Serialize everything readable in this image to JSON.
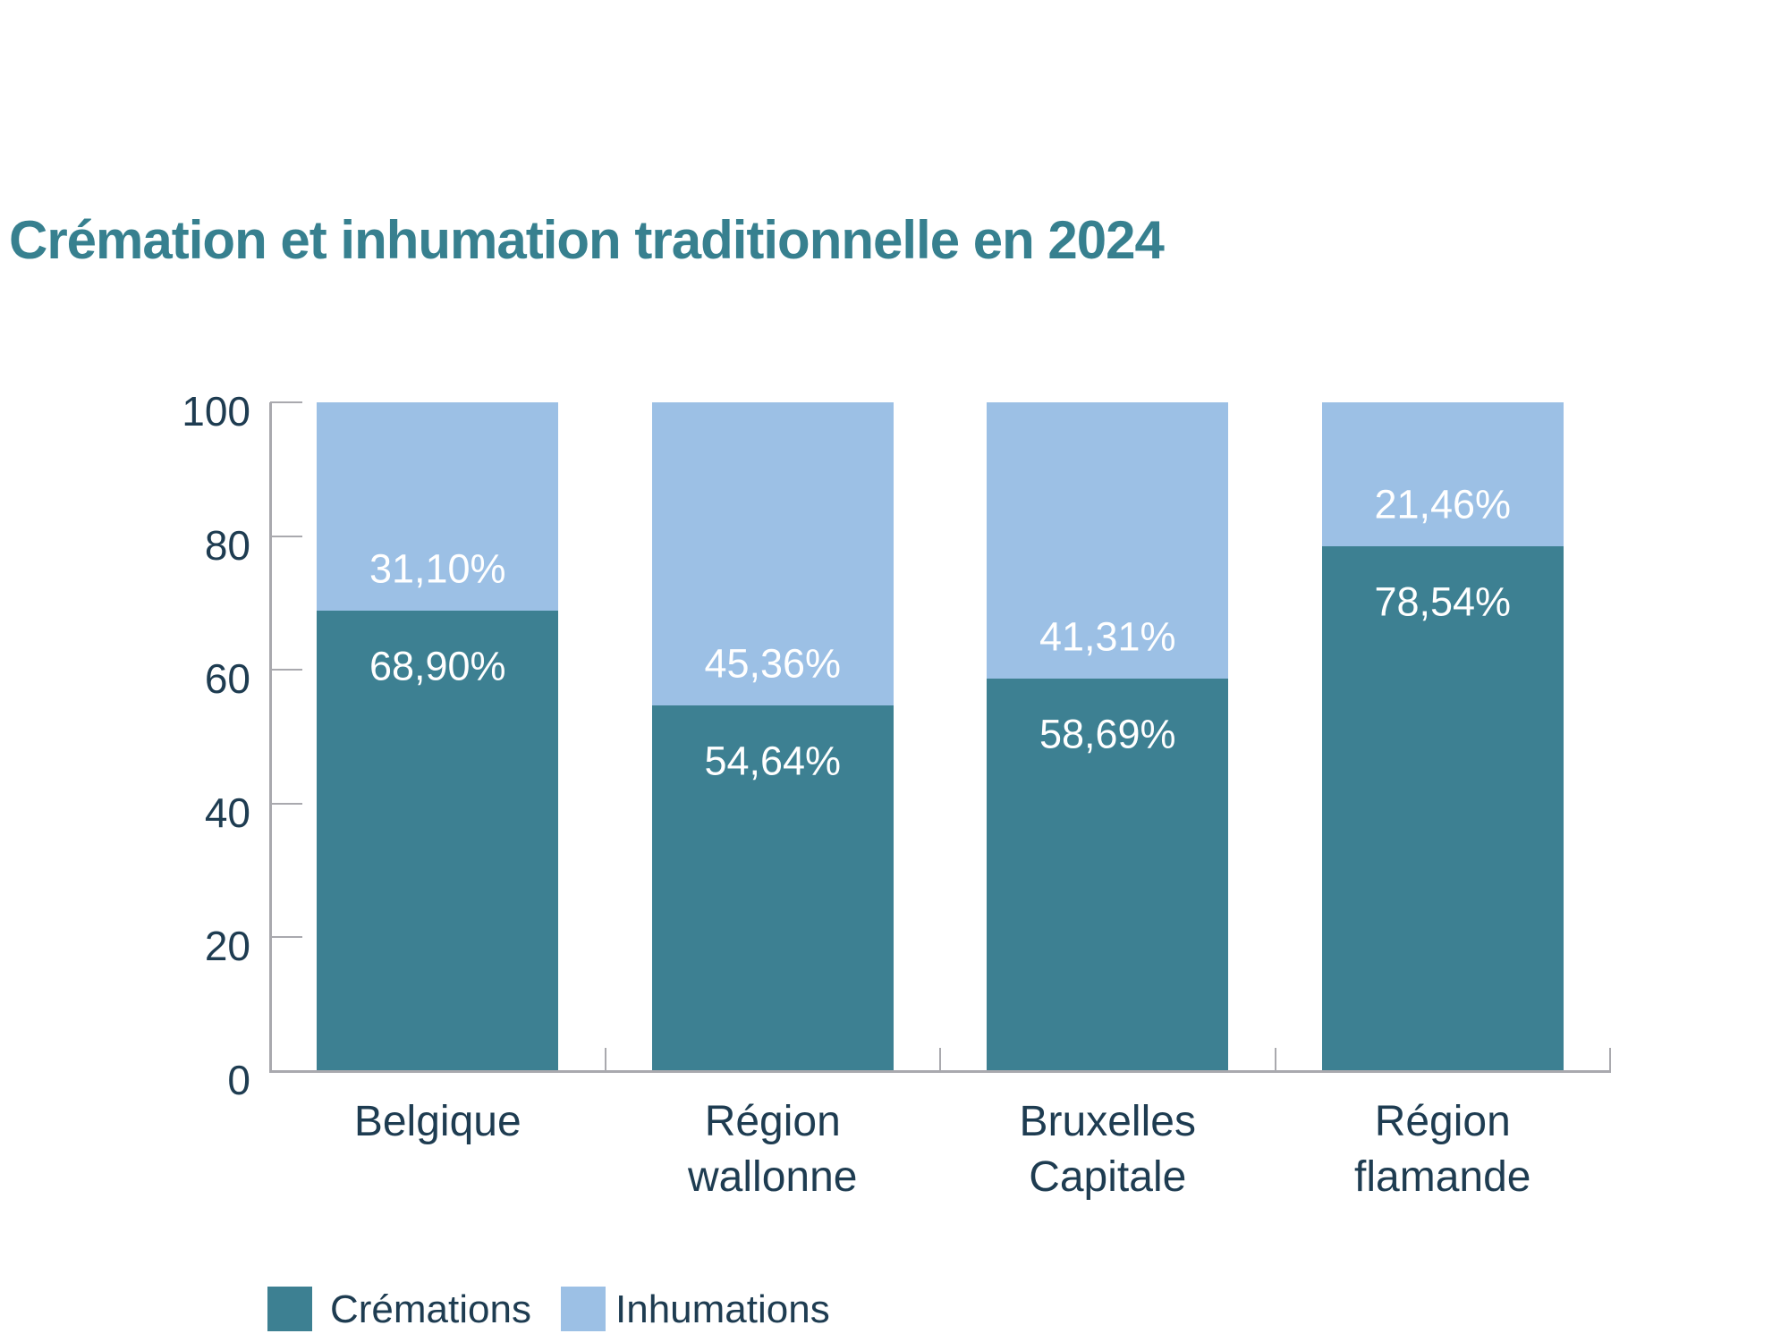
{
  "title": "Crémation et inhumation traditionnelle en 2024",
  "chart_data": {
    "type": "bar",
    "stacked": true,
    "title": "Crémation et inhumation traditionnelle en 2024",
    "categories": [
      "Belgique",
      "Région wallonne",
      "Bruxelles Capitale",
      "Région flamande"
    ],
    "category_label_lines": [
      [
        "Belgique"
      ],
      [
        "Région",
        "wallonne"
      ],
      [
        "Bruxelles",
        "Capitale"
      ],
      [
        "Région",
        "flamande"
      ]
    ],
    "series": [
      {
        "name": "Crémations",
        "color": "#3D8092",
        "values": [
          68.9,
          54.64,
          58.69,
          78.54
        ],
        "data_labels": [
          "68,90%",
          "54,64%",
          "58,69%",
          "78,54%"
        ]
      },
      {
        "name": "Inhumations",
        "color": "#9CC0E5",
        "values": [
          31.1,
          45.36,
          41.31,
          21.46
        ],
        "data_labels": [
          "31,10%",
          "45,36%",
          "41,31%",
          "21,46%"
        ]
      }
    ],
    "xlabel": "",
    "ylabel": "",
    "ylim": [
      0,
      100
    ],
    "yticks": [
      "0",
      "20",
      "40",
      "60",
      "80",
      "100"
    ],
    "grid": false,
    "legend_position": "bottom-left"
  },
  "legend": {
    "items": [
      {
        "label": "Crémations",
        "color": "#3D8092"
      },
      {
        "label": "Inhumations",
        "color": "#9CC0E5"
      }
    ]
  },
  "colors": {
    "title": "#37808F",
    "cremations": "#3D8092",
    "inhumations": "#9CC0E5",
    "axis_text": "#1E3C51",
    "axis_line": "#A9A9AE",
    "data_label": "#FFFFFF",
    "background": "#FFFFFF"
  }
}
